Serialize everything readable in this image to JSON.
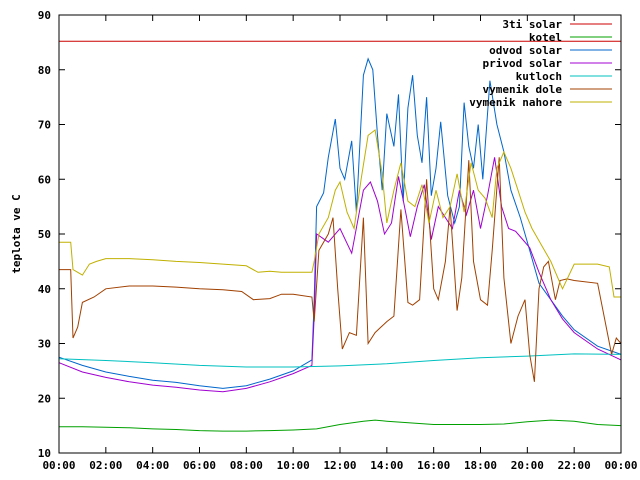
{
  "chart_data": {
    "type": "line",
    "title": "",
    "xlabel": "",
    "ylabel": "teplota ve C",
    "xlim": [
      0,
      24
    ],
    "ylim": [
      10,
      90
    ],
    "grid": false,
    "legend_placement": "top-right",
    "x_tick_labels": [
      "00:00",
      "02:00",
      "04:00",
      "06:00",
      "08:00",
      "10:00",
      "12:00",
      "14:00",
      "16:00",
      "18:00",
      "20:00",
      "22:00",
      "00:00"
    ],
    "y_tick_labels": [
      "10",
      "20",
      "30",
      "40",
      "50",
      "60",
      "70",
      "80",
      "90"
    ],
    "series": [
      {
        "name": "3ti solar",
        "color": "#cc0000",
        "x": [
          0,
          24
        ],
        "y": [
          85.2,
          85.2
        ]
      },
      {
        "name": "kotel",
        "color": "#00a000",
        "x": [
          0,
          1,
          2,
          3,
          4,
          5,
          6,
          7,
          8,
          9,
          10,
          11,
          12,
          13,
          13.5,
          14,
          15,
          16,
          17,
          18,
          19,
          20,
          21,
          22,
          23,
          24
        ],
        "y": [
          14.8,
          14.8,
          14.7,
          14.6,
          14.4,
          14.3,
          14.1,
          14.0,
          14.0,
          14.1,
          14.2,
          14.4,
          15.2,
          15.8,
          16.0,
          15.8,
          15.5,
          15.2,
          15.2,
          15.2,
          15.3,
          15.7,
          16.0,
          15.8,
          15.2,
          15.0
        ]
      },
      {
        "name": "odvod solar",
        "color": "#0066cc",
        "x": [
          0,
          1,
          2,
          3,
          4,
          5,
          6,
          7,
          8,
          9,
          10,
          10.8,
          10.9,
          11,
          11.3,
          11.5,
          11.8,
          12.0,
          12.2,
          12.5,
          12.7,
          13.0,
          13.2,
          13.4,
          13.6,
          13.8,
          14.0,
          14.3,
          14.5,
          14.7,
          14.9,
          15.1,
          15.3,
          15.5,
          15.7,
          15.9,
          16.1,
          16.3,
          16.6,
          16.9,
          17.1,
          17.3,
          17.5,
          17.7,
          17.9,
          18.1,
          18.4,
          18.7,
          19.0,
          19.3,
          19.7,
          20.1,
          20.5,
          21.0,
          21.5,
          22,
          23,
          24
        ],
        "y": [
          27.5,
          26.0,
          24.8,
          24.0,
          23.3,
          22.9,
          22.3,
          21.8,
          22.3,
          23.5,
          25.0,
          27.0,
          38.0,
          55.0,
          57.5,
          64.0,
          71.0,
          62.0,
          60.0,
          67.0,
          54.0,
          79.0,
          82.0,
          80.0,
          68.0,
          58.0,
          72.0,
          66.0,
          75.5,
          56.0,
          73.0,
          79.0,
          68.0,
          63.0,
          75.0,
          57.0,
          62.0,
          70.5,
          57.0,
          52.0,
          55.0,
          74.0,
          66.0,
          62.0,
          70.0,
          60.0,
          78.0,
          70.0,
          65.0,
          58.0,
          53.0,
          47.0,
          41.0,
          38.0,
          35.0,
          32.5,
          29.5,
          28.0
        ]
      },
      {
        "name": "privod solar",
        "color": "#a000d0",
        "x": [
          0,
          1,
          2,
          3,
          4,
          5,
          6,
          7,
          8,
          9,
          10,
          10.8,
          10.9,
          11.0,
          11.5,
          12.0,
          12.5,
          13.0,
          13.3,
          13.6,
          13.9,
          14.2,
          14.5,
          14.8,
          15.0,
          15.3,
          15.6,
          15.9,
          16.2,
          16.5,
          16.8,
          17.1,
          17.4,
          17.7,
          18.0,
          18.3,
          18.6,
          18.9,
          19.2,
          19.5,
          19.8,
          20.1,
          20.5,
          21.0,
          21.5,
          22,
          23,
          24
        ],
        "y": [
          26.5,
          24.8,
          23.8,
          23.0,
          22.4,
          22.0,
          21.5,
          21.2,
          21.8,
          23.0,
          24.5,
          26.0,
          35.0,
          50.0,
          48.5,
          51.0,
          46.5,
          58.0,
          59.5,
          56.0,
          50.0,
          52.0,
          60.5,
          54.0,
          49.5,
          55.0,
          59.0,
          49.0,
          55.0,
          53.0,
          51.0,
          58.0,
          53.5,
          58.0,
          51.0,
          57.0,
          64.0,
          55.0,
          51.0,
          50.5,
          49.0,
          47.5,
          43.0,
          38.0,
          34.5,
          32.0,
          29.0,
          27.0
        ]
      },
      {
        "name": "kutloch",
        "color": "#00c0c0",
        "x": [
          0,
          2,
          4,
          6,
          8,
          10,
          12,
          14,
          16,
          18,
          20,
          22,
          24
        ],
        "y": [
          27.2,
          26.9,
          26.5,
          26.0,
          25.7,
          25.7,
          25.9,
          26.3,
          26.9,
          27.4,
          27.7,
          28.1,
          28.0
        ]
      },
      {
        "name": "vymenik dole",
        "color": "#a04000",
        "x": [
          0,
          0.5,
          0.6,
          0.8,
          1.0,
          1.5,
          2,
          3,
          4,
          5,
          6,
          7,
          7.8,
          8.3,
          9,
          9.5,
          10,
          10.8,
          10.9,
          11.1,
          11.5,
          11.7,
          11.9,
          12.1,
          12.4,
          12.7,
          13.0,
          13.2,
          13.5,
          14.0,
          14.3,
          14.6,
          14.9,
          15.1,
          15.4,
          15.7,
          16.0,
          16.2,
          16.5,
          16.7,
          17.0,
          17.2,
          17.5,
          17.7,
          18.0,
          18.3,
          18.5,
          18.8,
          19.0,
          19.3,
          19.6,
          19.9,
          20.1,
          20.3,
          20.5,
          20.7,
          20.9,
          21.2,
          21.4,
          21.7,
          22,
          23,
          23.6,
          23.8,
          24
        ],
        "y": [
          43.5,
          43.5,
          31.0,
          33.0,
          37.5,
          38.5,
          40.0,
          40.5,
          40.5,
          40.3,
          40.0,
          39.8,
          39.5,
          38.0,
          38.2,
          39.0,
          39.0,
          38.5,
          34.0,
          47.0,
          50.0,
          53.0,
          40.0,
          29.0,
          32.0,
          31.5,
          53.0,
          30.0,
          32.0,
          34.0,
          35.0,
          54.5,
          37.5,
          37.0,
          38.0,
          60.0,
          40.0,
          38.0,
          45.0,
          55.0,
          36.0,
          42.0,
          63.5,
          45.0,
          38.0,
          37.0,
          47.0,
          64.0,
          42.0,
          30.0,
          35.0,
          38.0,
          28.0,
          23.0,
          40.0,
          44.0,
          45.0,
          38.0,
          41.5,
          41.8,
          41.5,
          41.0,
          28.0,
          31.0,
          30.0
        ]
      },
      {
        "name": "vymenik nahore",
        "color": "#c0b000",
        "x": [
          0,
          0.5,
          0.6,
          0.8,
          1.0,
          1.3,
          1.6,
          2,
          3,
          4,
          5,
          6,
          7,
          8,
          8.5,
          9,
          9.5,
          10,
          10.8,
          10.9,
          11.1,
          11.5,
          11.8,
          12.0,
          12.3,
          12.6,
          12.9,
          13.2,
          13.5,
          13.8,
          14.0,
          14.3,
          14.6,
          14.9,
          15.2,
          15.5,
          15.8,
          16.1,
          16.4,
          16.7,
          17.0,
          17.3,
          17.6,
          17.9,
          18.2,
          18.5,
          18.7,
          19.0,
          19.3,
          19.6,
          19.9,
          20.2,
          20.6,
          21.0,
          21.5,
          22,
          23,
          23.5,
          23.7,
          24
        ],
        "y": [
          48.5,
          48.5,
          43.5,
          43.0,
          42.5,
          44.5,
          45.0,
          45.5,
          45.5,
          45.3,
          45.0,
          44.8,
          44.5,
          44.2,
          43.0,
          43.2,
          43.0,
          43.0,
          43.0,
          45.0,
          50.0,
          53.0,
          58.0,
          59.5,
          54.0,
          51.0,
          60.0,
          68.0,
          69.0,
          61.0,
          52.0,
          58.0,
          63.0,
          56.0,
          55.0,
          59.0,
          52.0,
          58.0,
          53.0,
          55.0,
          61.0,
          54.0,
          63.0,
          58.0,
          56.5,
          53.0,
          62.0,
          65.0,
          62.0,
          58.0,
          54.0,
          51.0,
          48.0,
          45.0,
          40.0,
          44.5,
          44.5,
          44.0,
          38.5,
          38.5
        ]
      }
    ]
  }
}
